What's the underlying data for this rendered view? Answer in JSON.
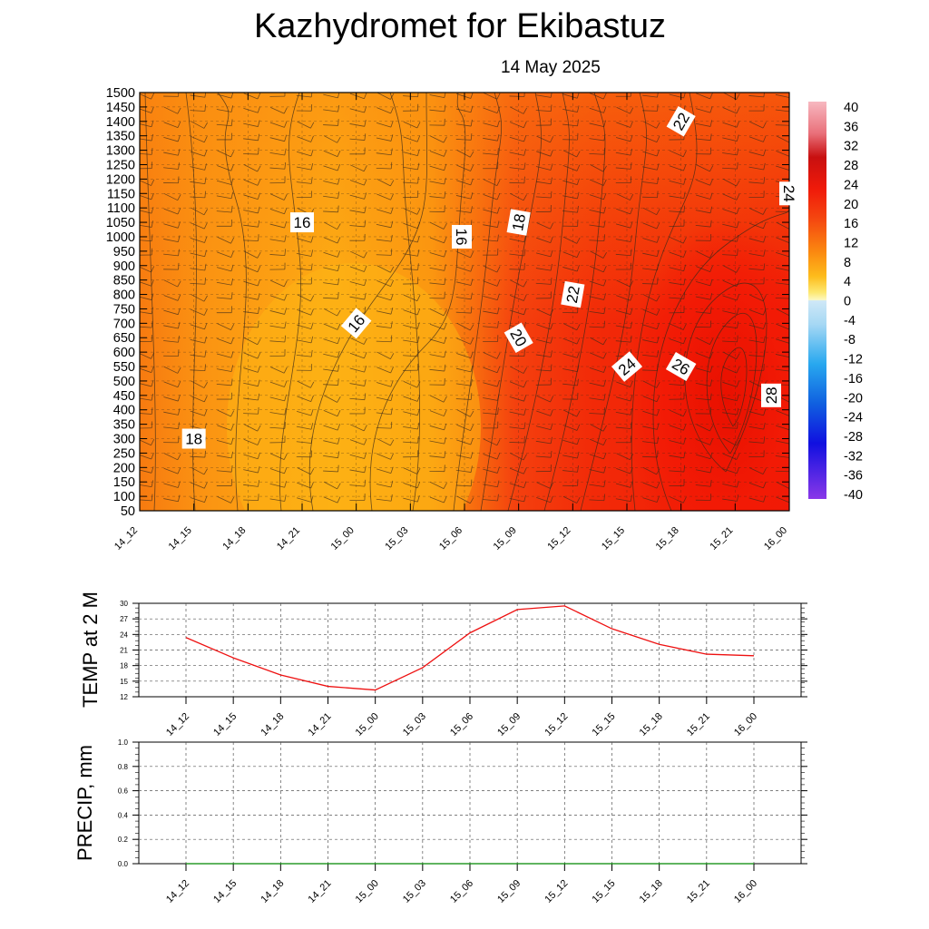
{
  "header": {
    "title": "Kazhydromet  for Ekibastuz",
    "date": "14 May 2025"
  },
  "colors": {
    "contour_line": "#3a2a1a",
    "temp_line": "#ee1111",
    "precip_line": "#008800",
    "grid": "#555555"
  },
  "chart_data": [
    {
      "type": "heatmap",
      "title": "",
      "time_labels": [
        "14_12",
        "14_15",
        "14_18",
        "14_21",
        "15_00",
        "15_03",
        "15_06",
        "15_09",
        "15_12",
        "15_15",
        "15_18",
        "15_21",
        "16_00"
      ],
      "height_levels": [
        50,
        100,
        150,
        200,
        250,
        300,
        350,
        400,
        450,
        500,
        550,
        600,
        650,
        700,
        750,
        800,
        850,
        900,
        950,
        1000,
        1050,
        1100,
        1150,
        1200,
        1250,
        1300,
        1350,
        1400,
        1450,
        1500
      ],
      "contour_labels": [
        {
          "value": "16",
          "time": "14_21",
          "level": 1050
        },
        {
          "value": "16",
          "time": "15_00",
          "level": 700
        },
        {
          "value": "16",
          "time": "15_06",
          "level": 1000
        },
        {
          "value": "18",
          "time": "15_09",
          "level": 1050
        },
        {
          "value": "18",
          "time": "14_15",
          "level": 300
        },
        {
          "value": "20",
          "time": "15_09",
          "level": 650
        },
        {
          "value": "22",
          "time": "15_12",
          "level": 800
        },
        {
          "value": "22",
          "time": "15_18",
          "level": 1400
        },
        {
          "value": "24",
          "time": "15_15",
          "level": 550
        },
        {
          "value": "24",
          "time": "16_00",
          "level": 1150
        },
        {
          "value": "26",
          "time": "15_18",
          "level": 550
        },
        {
          "value": "28",
          "time": "16_00",
          "level": 450
        }
      ],
      "colorbar": {
        "labels": [
          "40",
          "36",
          "32",
          "28",
          "24",
          "20",
          "16",
          "12",
          "8",
          "4",
          "0",
          "-4",
          "-8",
          "-12",
          "-16",
          "-20",
          "-24",
          "-28",
          "-32",
          "-36",
          "-40"
        ],
        "range": [
          -40,
          40
        ]
      }
    },
    {
      "type": "line",
      "ylabel": "TEMP at 2 M",
      "ylim": [
        12,
        30
      ],
      "y_ticks": [
        "30",
        "27",
        "24",
        "21",
        "18",
        "15",
        "12"
      ],
      "categories": [
        "14_12",
        "14_15",
        "14_18",
        "14_21",
        "15_00",
        "15_03",
        "15_06",
        "15_09",
        "15_12",
        "15_15",
        "15_18",
        "15_21",
        "16_00"
      ],
      "values": [
        23.4,
        19.5,
        16.2,
        14.0,
        13.3,
        17.6,
        24.3,
        28.8,
        29.5,
        25.1,
        22.1,
        20.2,
        19.9
      ]
    },
    {
      "type": "line",
      "ylabel": "PRECIP, mm",
      "ylim": [
        0,
        1
      ],
      "y_ticks": [
        "1.0",
        "0.8",
        "0.6",
        "0.4",
        "0.2",
        "0.0"
      ],
      "categories": [
        "14_12",
        "14_15",
        "14_18",
        "14_21",
        "15_00",
        "15_03",
        "15_06",
        "15_09",
        "15_12",
        "15_15",
        "15_18",
        "15_21",
        "16_00"
      ],
      "values": [
        0,
        0,
        0,
        0,
        0,
        0,
        0,
        0,
        0,
        0,
        0,
        0,
        0
      ]
    }
  ]
}
